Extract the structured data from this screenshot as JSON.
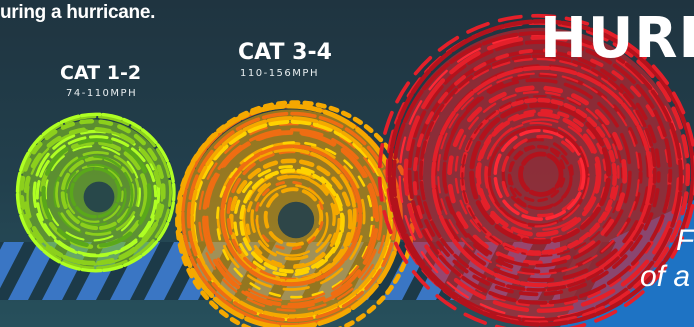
{
  "intro_text": "uring a hurricane.",
  "categories": [
    {
      "label": "CAT 1-2",
      "speed": "74-110MPH",
      "color": "#8ccf1c"
    },
    {
      "label": "CAT 3-4",
      "speed": "110-156MPH",
      "color": "#f5a800"
    },
    {
      "label": "",
      "speed": "",
      "color": "#e4202a"
    }
  ],
  "headline_fragment": "HURR",
  "italic_fragment_1": "F",
  "italic_fragment_2": "of a",
  "colors": {
    "background": "#22404d",
    "stripe_blue": "#3a76c4",
    "panel_blue": "#1e73c4",
    "hurricane_small": "#8ccf1c",
    "hurricane_medium": "#f5a800",
    "hurricane_large": "#e4202a"
  },
  "icons": [
    "hurricane-swirl-icon",
    "hurricane-swirl-icon",
    "hurricane-swirl-icon"
  ]
}
